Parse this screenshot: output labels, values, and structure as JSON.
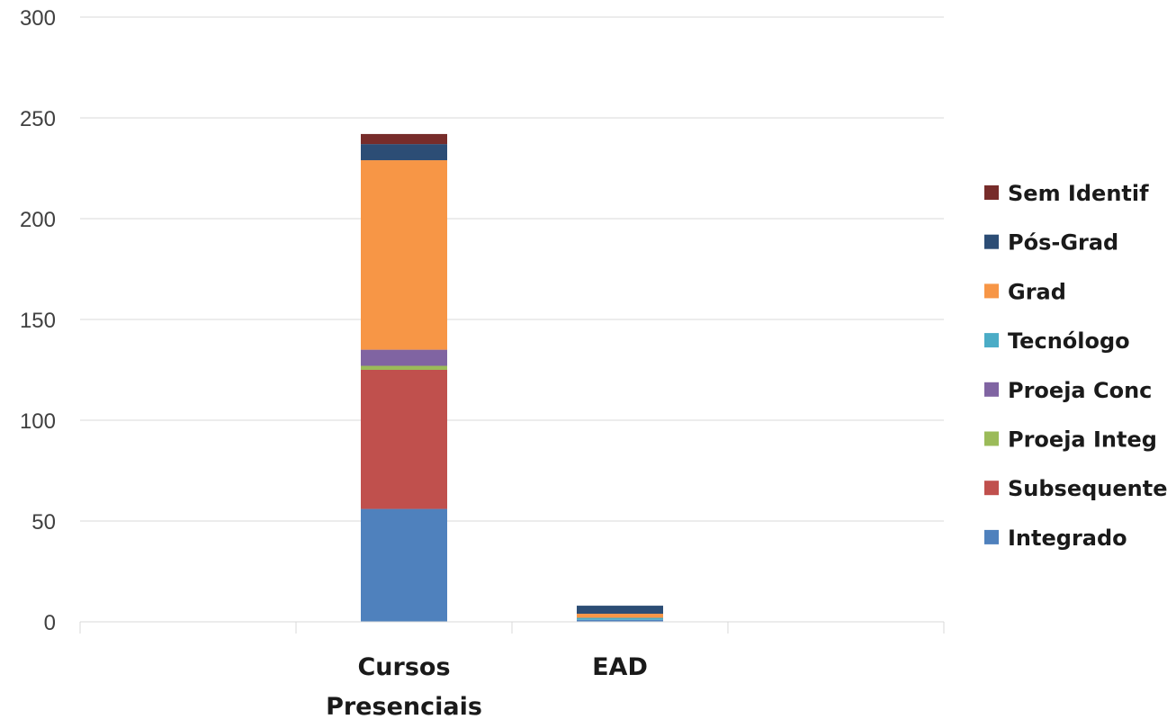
{
  "chart_data": {
    "type": "bar",
    "stacked": true,
    "title": "",
    "xlabel": "",
    "ylabel": "",
    "ylim": [
      0,
      300
    ],
    "yticks": [
      0,
      50,
      100,
      150,
      200,
      250,
      300
    ],
    "grid": true,
    "legend_position": "right",
    "slots": 4,
    "categories": [
      {
        "label_lines": [
          "Cursos",
          "Presenciais"
        ],
        "slot": 1
      },
      {
        "label_lines": [
          "EAD"
        ],
        "slot": 2
      }
    ],
    "series": [
      {
        "name": "Integrado",
        "color": "#4F81BD",
        "values": [
          56,
          1
        ]
      },
      {
        "name": "Subsequente",
        "color": "#C0504D",
        "values": [
          69,
          0
        ]
      },
      {
        "name": "Proeja Integ",
        "color": "#9BBB59",
        "values": [
          2,
          0
        ]
      },
      {
        "name": "Proeja Conc",
        "color": "#8064A2",
        "values": [
          8,
          0
        ]
      },
      {
        "name": "Tecnólogo",
        "color": "#4BACC6",
        "values": [
          0,
          1
        ]
      },
      {
        "name": "Grad",
        "color": "#F79646",
        "values": [
          94,
          2
        ]
      },
      {
        "name": "Pós-Grad",
        "color": "#2C4D75",
        "values": [
          8,
          4
        ]
      },
      {
        "name": "Sem Identif",
        "color": "#772C2A",
        "values": [
          5,
          0
        ]
      }
    ]
  }
}
